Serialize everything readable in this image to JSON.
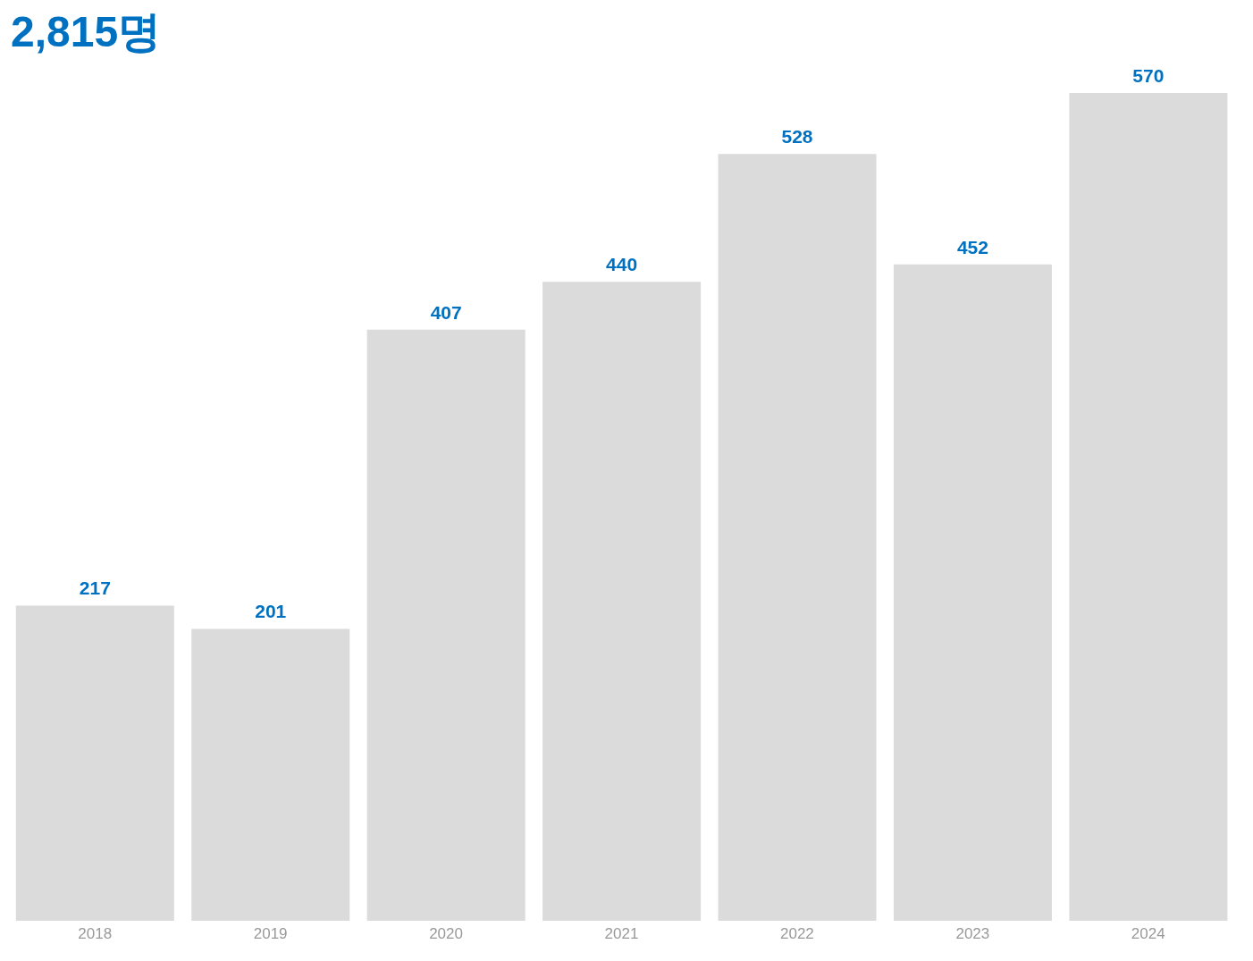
{
  "chart_data": {
    "type": "bar",
    "title": "2,815명",
    "categories": [
      "2018",
      "2019",
      "2020",
      "2021",
      "2022",
      "2023",
      "2024"
    ],
    "values": [
      217,
      201,
      407,
      440,
      528,
      452,
      570
    ],
    "color": "#dbdbdb",
    "data_labels": true
  }
}
